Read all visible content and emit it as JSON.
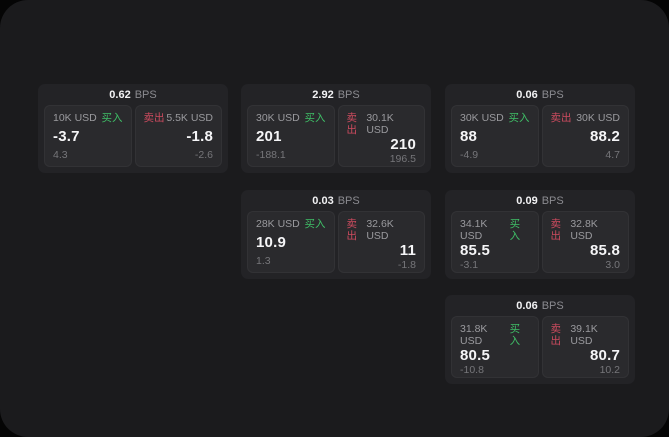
{
  "labels": {
    "bps_unit": "BPS",
    "buy": "买入",
    "sell": "卖出"
  },
  "colors": {
    "background": "#050505",
    "window_bg": "#1b1b1d",
    "card_bg": "#232326",
    "panel_bg": "#2a2a2d",
    "buy_green": "#3fbf67",
    "sell_red": "#cd4b5f",
    "text_primary": "#f5f5f7",
    "text_secondary": "#9a9a9e",
    "text_muted": "#76767a"
  },
  "cards": [
    {
      "bps": "0.62",
      "buy": {
        "size": "10K USD",
        "price": "-3.7",
        "delta": "4.3"
      },
      "sell": {
        "size": "5.5K USD",
        "price": "-1.8",
        "delta": "-2.6"
      }
    },
    {
      "bps": "2.92",
      "buy": {
        "size": "30K USD",
        "price": "201",
        "delta": "-188.1"
      },
      "sell": {
        "size": "30.1K USD",
        "price": "210",
        "delta": "196.5"
      }
    },
    {
      "bps": "0.06",
      "buy": {
        "size": "30K USD",
        "price": "88",
        "delta": "-4.9"
      },
      "sell": {
        "size": "30K USD",
        "price": "88.2",
        "delta": "4.7"
      }
    },
    {
      "bps": "0.03",
      "buy": {
        "size": "28K USD",
        "price": "10.9",
        "delta": "1.3"
      },
      "sell": {
        "size": "32.6K USD",
        "price": "11",
        "delta": "-1.8"
      }
    },
    {
      "bps": "0.09",
      "buy": {
        "size": "34.1K USD",
        "price": "85.5",
        "delta": "-3.1"
      },
      "sell": {
        "size": "32.8K USD",
        "price": "85.8",
        "delta": "3.0"
      }
    },
    {
      "bps": "0.06",
      "buy": {
        "size": "31.8K USD",
        "price": "80.5",
        "delta": "-10.8"
      },
      "sell": {
        "size": "39.1K USD",
        "price": "80.7",
        "delta": "10.2"
      }
    }
  ]
}
